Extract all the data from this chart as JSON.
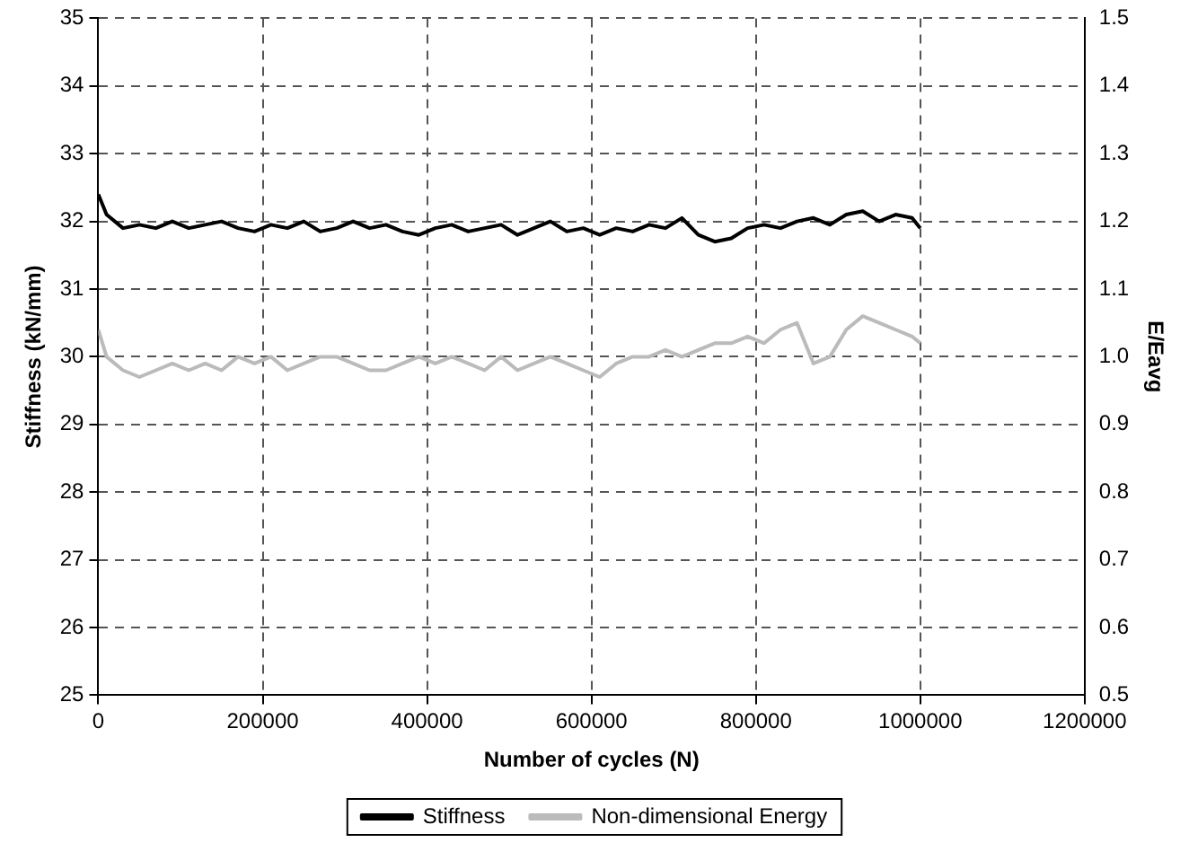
{
  "chart_data": {
    "type": "line",
    "xlabel": "Number of cycles (N)",
    "ylabel": "Stiffness (kN/mm)",
    "y2label": "E/Eavg",
    "xlim": [
      0,
      1200000
    ],
    "xticks": [
      0,
      200000,
      400000,
      600000,
      800000,
      1000000,
      1200000
    ],
    "ylim": [
      25,
      35
    ],
    "yticks": [
      25,
      26,
      27,
      28,
      29,
      30,
      31,
      32,
      33,
      34,
      35
    ],
    "y2lim": [
      0.5,
      1.5
    ],
    "y2ticks": [
      0.5,
      0.6,
      0.7,
      0.8,
      0.9,
      {
        "value": 1,
        "label": "1.0"
      },
      1.1,
      1.2,
      1.3,
      1.4,
      1.5
    ],
    "x": [
      0,
      10000,
      30000,
      50000,
      70000,
      90000,
      110000,
      130000,
      150000,
      170000,
      190000,
      210000,
      230000,
      250000,
      270000,
      290000,
      310000,
      330000,
      350000,
      370000,
      390000,
      410000,
      430000,
      450000,
      470000,
      490000,
      510000,
      530000,
      550000,
      570000,
      590000,
      610000,
      630000,
      650000,
      670000,
      690000,
      710000,
      730000,
      750000,
      770000,
      790000,
      810000,
      830000,
      850000,
      870000,
      890000,
      910000,
      930000,
      950000,
      970000,
      990000,
      1000000
    ],
    "series": [
      {
        "name": "Stiffness",
        "color": "#000000",
        "values": [
          32.4,
          32.1,
          31.9,
          31.95,
          31.9,
          32.0,
          31.9,
          31.95,
          32.0,
          31.9,
          31.85,
          31.95,
          31.9,
          32.0,
          31.85,
          31.9,
          32.0,
          31.9,
          31.95,
          31.85,
          31.8,
          31.9,
          31.95,
          31.85,
          31.9,
          31.95,
          31.8,
          31.9,
          32.0,
          31.85,
          31.9,
          31.8,
          31.9,
          31.85,
          31.95,
          31.9,
          32.05,
          31.8,
          31.7,
          31.75,
          31.9,
          31.95,
          31.9,
          32.0,
          32.05,
          31.95,
          32.1,
          32.15,
          32.0,
          32.1,
          32.05,
          31.9
        ]
      },
      {
        "name": "Non-dimensional Energy",
        "color": "#bbbbbb",
        "axis": "y2",
        "values": [
          1.04,
          1.0,
          0.98,
          0.97,
          0.98,
          0.99,
          0.98,
          0.99,
          0.98,
          1.0,
          0.99,
          1.0,
          0.98,
          0.99,
          1.0,
          1.0,
          0.99,
          0.98,
          0.98,
          0.99,
          1.0,
          0.99,
          1.0,
          0.99,
          0.98,
          1.0,
          0.98,
          0.99,
          1.0,
          0.99,
          0.98,
          0.97,
          0.99,
          1.0,
          1.0,
          1.01,
          1.0,
          1.01,
          1.02,
          1.02,
          1.03,
          1.02,
          1.04,
          1.05,
          0.99,
          1.0,
          1.04,
          1.06,
          1.05,
          1.04,
          1.03,
          1.02
        ]
      }
    ],
    "grid": true,
    "legend": "bottom",
    "marker": "none",
    "line_style": "solid"
  }
}
